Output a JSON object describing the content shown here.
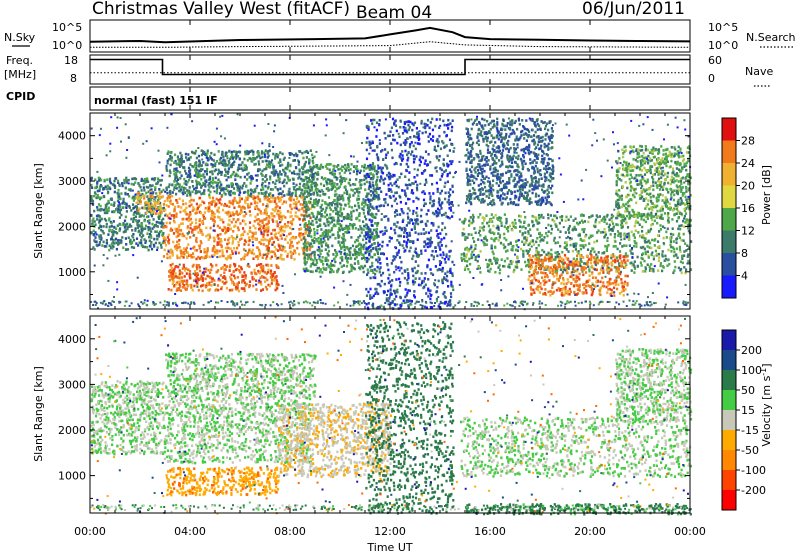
{
  "header": {
    "station": "Christmas Valley West (fitACF)",
    "beam": "Beam 04",
    "date": "06/Jun/2011"
  },
  "panels": {
    "nsky_label": "N.Sky",
    "nsky_ticks": [
      "10^5",
      "10^0"
    ],
    "nsearch_label": "N.Search",
    "nsearch_ticks": [
      "10^5",
      "10^0"
    ],
    "freq_label": "Freq.",
    "freq_unit": "[MHz]",
    "freq_ticks": [
      "18",
      "8"
    ],
    "nave_label": "Nave",
    "nave_ticks": [
      "60",
      "0"
    ],
    "cpid_label": "CPID",
    "cpid_text": "normal (fast) 151 IF"
  },
  "x_ticks": [
    "00:00",
    "04:00",
    "08:00",
    "12:00",
    "16:00",
    "20:00",
    "00:00"
  ],
  "x_label": "Time UT",
  "colors": {
    "power": [
      "#1a1aff",
      "#2a4fa0",
      "#3c7a6a",
      "#4ea84a",
      "#b6c84a",
      "#f0b030",
      "#f07a1c",
      "#e84018",
      "#e01010"
    ],
    "velocity": [
      "#ff0000",
      "#ff6600",
      "#ffaa00",
      "#c8c8b8",
      "#c8c8b8",
      "#44cc44",
      "#2a7a4a",
      "#1a4a8a",
      "#1a1aaa"
    ],
    "velocity_ground": "#c8c8c0"
  },
  "chart_data": [
    {
      "type": "line",
      "name": "N.Sky / N.Search",
      "ylabel": "N.Sky",
      "y_log": true,
      "ylim": [
        1,
        100000
      ],
      "x_range_hours": [
        0,
        24
      ],
      "series": [
        {
          "x": [
            0,
            2,
            3,
            6,
            9,
            11,
            12,
            13,
            13.6,
            14.5,
            15,
            16,
            18,
            20,
            22,
            24
          ],
          "values": [
            30,
            40,
            25,
            60,
            90,
            120,
            600,
            3000,
            9000,
            1500,
            200,
            90,
            70,
            50,
            40,
            35
          ]
        },
        {
          "x": [
            0,
            3,
            6,
            9,
            12,
            13.6,
            15,
            18,
            24
          ],
          "values": [
            3,
            3,
            4,
            5,
            6,
            30,
            8,
            4,
            3
          ]
        }
      ]
    },
    {
      "type": "line",
      "name": "Frequency / Nave",
      "ylabel": "Freq. [MHz]",
      "ylim": [
        8,
        18
      ],
      "y2label": "Nave",
      "y2lim": [
        0,
        60
      ],
      "x_range_hours": [
        0,
        24
      ],
      "series": [
        {
          "x": [
            0,
            2.9,
            2.9,
            15,
            15,
            24
          ],
          "values": [
            17,
            17,
            11,
            11,
            17,
            17
          ]
        },
        {
          "x": [
            0,
            24
          ],
          "values": [
            22,
            22
          ],
          "axis": "y2"
        }
      ]
    },
    {
      "type": "heatmap",
      "parameter": "Power",
      "ylabel": "Slant Range [km]",
      "xlabel": "Time UT",
      "ylim": [
        180,
        4500
      ],
      "y_ticks": [
        1000,
        2000,
        3000,
        4000
      ],
      "x_range_hours": [
        0,
        24
      ],
      "colorbar_label": "Power [dB]",
      "colorbar_ticks": [
        4,
        8,
        12,
        16,
        20,
        24,
        28
      ],
      "regions": [
        {
          "t0": 0.0,
          "t1": 2.9,
          "r0": 1500,
          "r1": 3100,
          "p": 10
        },
        {
          "t0": 1.8,
          "t1": 2.9,
          "r0": 2300,
          "r1": 2800,
          "p": 22
        },
        {
          "t0": 2.9,
          "t1": 8.8,
          "r0": 1300,
          "r1": 2700,
          "p": 25
        },
        {
          "t0": 3.1,
          "t1": 7.5,
          "r0": 600,
          "r1": 1200,
          "p": 27
        },
        {
          "t0": 3.0,
          "t1": 9.0,
          "r0": 2700,
          "r1": 3700,
          "p": 10
        },
        {
          "t0": 8.5,
          "t1": 11.5,
          "r0": 1000,
          "r1": 3400,
          "p": 12
        },
        {
          "t0": 11.0,
          "t1": 14.5,
          "r0": 200,
          "r1": 4400,
          "p": 6
        },
        {
          "t0": 14.8,
          "t1": 24.0,
          "r0": 1000,
          "r1": 2300,
          "p": 13
        },
        {
          "t0": 17.5,
          "t1": 21.5,
          "r0": 500,
          "r1": 1400,
          "p": 26
        },
        {
          "t0": 15.0,
          "t1": 18.5,
          "r0": 2500,
          "r1": 4400,
          "p": 8
        },
        {
          "t0": 21.0,
          "t1": 24.0,
          "r0": 2200,
          "r1": 3800,
          "p": 14
        }
      ]
    },
    {
      "type": "heatmap",
      "parameter": "Velocity",
      "ylabel": "Slant Range [km]",
      "xlabel": "Time UT",
      "ylim": [
        180,
        4500
      ],
      "y_ticks": [
        1000,
        2000,
        3000,
        4000
      ],
      "x_range_hours": [
        0,
        24
      ],
      "colorbar_label": "Velocity [m s^-1]",
      "colorbar_ticks": [
        -200,
        -100,
        -50,
        -15,
        15,
        50,
        100,
        200
      ],
      "regions": [
        {
          "t0": 0.0,
          "t1": 2.9,
          "r0": 1500,
          "r1": 3100,
          "v": 0
        },
        {
          "t0": 2.9,
          "t1": 8.8,
          "r0": 1300,
          "r1": 2700,
          "v": 0
        },
        {
          "t0": 3.0,
          "t1": 7.5,
          "r0": 600,
          "r1": 1200,
          "v": -90
        },
        {
          "t0": 7.5,
          "t1": 12.0,
          "r0": 1000,
          "r1": 2600,
          "v": -45
        },
        {
          "t0": 3.0,
          "t1": 9.0,
          "r0": 2700,
          "r1": 3700,
          "v": 0
        },
        {
          "t0": 11.0,
          "t1": 14.5,
          "r0": 200,
          "r1": 4400,
          "v": 30
        },
        {
          "t0": 14.8,
          "t1": 24.0,
          "r0": 1000,
          "r1": 2300,
          "v": 0
        },
        {
          "t0": 21.0,
          "t1": 24.0,
          "r0": 2200,
          "r1": 3800,
          "v": 0
        },
        {
          "t0": 15.0,
          "t1": 24.0,
          "r0": 180,
          "r1": 400,
          "v": 25
        }
      ]
    }
  ]
}
